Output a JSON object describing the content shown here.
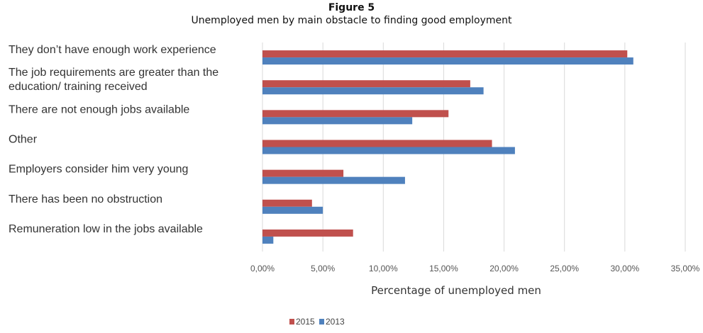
{
  "figure": {
    "title": "Figure 5",
    "subtitle": "Unemployed men by main obstacle to finding good employment"
  },
  "chart_data": {
    "type": "bar",
    "orientation": "horizontal",
    "categories": [
      [
        "They don’t have enough work experience"
      ],
      [
        "The job requirements are greater than the",
        "education/ training received"
      ],
      [
        "There are not enough jobs available"
      ],
      [
        "Other"
      ],
      [
        "Employers consider him very young"
      ],
      [
        "There has been no obstruction"
      ],
      [
        "Remuneration low in the jobs available"
      ]
    ],
    "series": [
      {
        "name": "2015",
        "color": "#c0504d",
        "values": [
          30.2,
          17.2,
          15.4,
          19.0,
          6.7,
          4.1,
          7.5
        ]
      },
      {
        "name": "2013",
        "color": "#4f81bd",
        "values": [
          30.7,
          18.3,
          12.4,
          20.9,
          11.8,
          5.0,
          0.9
        ]
      }
    ],
    "xlabel": "Percentage of unemployed men",
    "ylabel": "",
    "xlim": [
      0,
      35
    ],
    "xticks": [
      0,
      5,
      10,
      15,
      20,
      25,
      30,
      35
    ],
    "xtick_labels": [
      "0,00%",
      "5,00%",
      "10,00%",
      "15,00%",
      "20,00%",
      "25,00%",
      "30,00%",
      "35,00%"
    ],
    "grid": "vertical",
    "legend_position": "bottom-center"
  }
}
